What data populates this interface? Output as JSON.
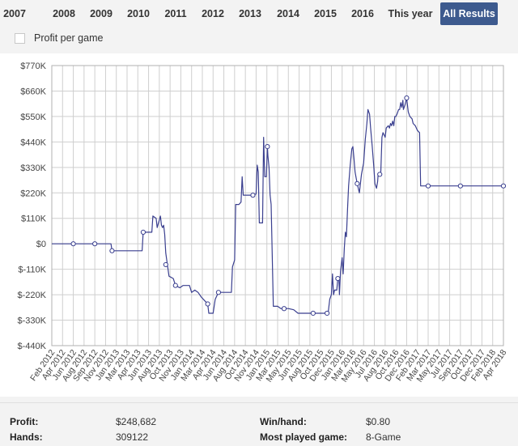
{
  "tabs": [
    {
      "label": "2007",
      "active": false
    },
    {
      "label": "2008",
      "active": false
    },
    {
      "label": "2009",
      "active": false
    },
    {
      "label": "2010",
      "active": false
    },
    {
      "label": "2011",
      "active": false
    },
    {
      "label": "2012",
      "active": false
    },
    {
      "label": "2013",
      "active": false
    },
    {
      "label": "2014",
      "active": false
    },
    {
      "label": "2015",
      "active": false
    },
    {
      "label": "2016",
      "active": false
    },
    {
      "label": "This year",
      "active": false
    },
    {
      "label": "All Results",
      "active": true
    }
  ],
  "profit_per_game": {
    "label": "Profit per game",
    "checked": false
  },
  "colors": {
    "accent": "#3d5a8e",
    "line": "#3a3f8f"
  },
  "chart_data": {
    "type": "line",
    "ylim": [
      -440,
      770
    ],
    "y_ticks": [
      {
        "value": 770,
        "label": "$770K"
      },
      {
        "value": 660,
        "label": "$660K"
      },
      {
        "value": 550,
        "label": "$550K"
      },
      {
        "value": 440,
        "label": "$440K"
      },
      {
        "value": 330,
        "label": "$330K"
      },
      {
        "value": 220,
        "label": "$220K"
      },
      {
        "value": 110,
        "label": "$110K"
      },
      {
        "value": 0,
        "label": "$0"
      },
      {
        "value": -110,
        "label": "$-110K"
      },
      {
        "value": -220,
        "label": "$-220K"
      },
      {
        "value": -330,
        "label": "$-330K"
      },
      {
        "value": -440,
        "label": "$-440K"
      }
    ],
    "x_ticks": [
      "Feb 2012",
      "Apr 2012",
      "Jun 2012",
      "Aug 2012",
      "Sep 2012",
      "Nov 2012",
      "Jan 2013",
      "Mar 2013",
      "Apr 2013",
      "Jun 2013",
      "Aug 2013",
      "Oct 2013",
      "Nov 2013",
      "Jan 2014",
      "Mar 2014",
      "Apr 2014",
      "Jun 2014",
      "Aug 2014",
      "Oct 2014",
      "Nov 2014",
      "Jan 2015",
      "Mar 2015",
      "May 2015",
      "Jun 2015",
      "Aug 2015",
      "Oct 2015",
      "Dec 2015",
      "Jan 2016",
      "Mar 2016",
      "May 2016",
      "Jul 2016",
      "Aug 2016",
      "Oct 2016",
      "Dec 2016",
      "Feb 2017",
      "Mar 2017",
      "May 2017",
      "Jul 2017",
      "Sep 2017",
      "Oct 2017",
      "Dec 2017",
      "Feb 2018",
      "Apr 2018"
    ],
    "series": [
      {
        "points": [
          [
            0,
            0
          ],
          [
            2,
            0
          ],
          [
            4,
            0
          ],
          [
            5.5,
            0
          ],
          [
            5.6,
            -30
          ],
          [
            7,
            -30
          ],
          [
            8.4,
            -30
          ],
          [
            8.5,
            50
          ],
          [
            9,
            50
          ],
          [
            9.3,
            50
          ],
          [
            9.4,
            120
          ],
          [
            9.7,
            110
          ],
          [
            9.8,
            70
          ],
          [
            10.1,
            120
          ],
          [
            10.2,
            80
          ],
          [
            10.3,
            70
          ],
          [
            10.4,
            80
          ],
          [
            10.5,
            40
          ],
          [
            10.6,
            -40
          ],
          [
            10.75,
            -90
          ],
          [
            10.9,
            -140
          ],
          [
            11.3,
            -150
          ],
          [
            11.5,
            -180
          ],
          [
            11.9,
            -190
          ],
          [
            12.2,
            -180
          ],
          [
            12.5,
            -180
          ],
          [
            12.8,
            -180
          ],
          [
            13,
            -210
          ],
          [
            13.3,
            -200
          ],
          [
            13.6,
            -210
          ],
          [
            13.9,
            -230
          ],
          [
            14.3,
            -250
          ],
          [
            14.5,
            -260
          ],
          [
            14.6,
            -300
          ],
          [
            15,
            -300
          ],
          [
            15.2,
            -240
          ],
          [
            15.5,
            -210
          ],
          [
            16,
            -210
          ],
          [
            16.7,
            -210
          ],
          [
            16.8,
            -100
          ],
          [
            17,
            -70
          ],
          [
            17.1,
            170
          ],
          [
            17.4,
            170
          ],
          [
            17.6,
            180
          ],
          [
            17.7,
            290
          ],
          [
            17.8,
            210
          ],
          [
            18.3,
            210
          ],
          [
            18.7,
            210
          ],
          [
            19,
            215
          ],
          [
            19.1,
            340
          ],
          [
            19.2,
            310
          ],
          [
            19.3,
            90
          ],
          [
            19.6,
            90
          ],
          [
            19.7,
            460
          ],
          [
            19.8,
            290
          ],
          [
            19.95,
            290
          ],
          [
            20.05,
            420
          ],
          [
            20.1,
            380
          ],
          [
            20.2,
            330
          ],
          [
            20.3,
            210
          ],
          [
            20.4,
            170
          ],
          [
            20.6,
            -270
          ],
          [
            21,
            -270
          ],
          [
            21.3,
            -280
          ],
          [
            21.6,
            -280
          ],
          [
            22,
            -280
          ],
          [
            22.5,
            -285
          ],
          [
            22.9,
            -300
          ],
          [
            23.3,
            -300
          ],
          [
            23.7,
            -300
          ],
          [
            24.3,
            -300
          ],
          [
            24.8,
            -300
          ],
          [
            25.4,
            -300
          ],
          [
            25.7,
            -300
          ],
          [
            25.85,
            -240
          ],
          [
            26,
            -220
          ],
          [
            26.1,
            -130
          ],
          [
            26.2,
            -220
          ],
          [
            26.3,
            -200
          ],
          [
            26.5,
            -200
          ],
          [
            26.6,
            -150
          ],
          [
            26.7,
            -150
          ],
          [
            26.75,
            -220
          ],
          [
            26.85,
            -120
          ],
          [
            27,
            -60
          ],
          [
            27.1,
            -130
          ],
          [
            27.2,
            -20
          ],
          [
            27.3,
            50
          ],
          [
            27.4,
            30
          ],
          [
            27.5,
            150
          ],
          [
            27.6,
            250
          ],
          [
            27.75,
            340
          ],
          [
            27.9,
            410
          ],
          [
            28,
            420
          ],
          [
            28.1,
            370
          ],
          [
            28.2,
            310
          ],
          [
            28.4,
            260
          ],
          [
            28.6,
            220
          ],
          [
            28.8,
            300
          ],
          [
            29,
            350
          ],
          [
            29.15,
            450
          ],
          [
            29.3,
            520
          ],
          [
            29.4,
            580
          ],
          [
            29.55,
            560
          ],
          [
            29.65,
            500
          ],
          [
            29.8,
            420
          ],
          [
            29.95,
            330
          ],
          [
            30.05,
            260
          ],
          [
            30.2,
            240
          ],
          [
            30.3,
            270
          ],
          [
            30.35,
            300
          ],
          [
            30.5,
            300
          ],
          [
            30.6,
            310
          ],
          [
            30.7,
            460
          ],
          [
            30.8,
            480
          ],
          [
            31,
            460
          ],
          [
            31.1,
            500
          ],
          [
            31.3,
            510
          ],
          [
            31.4,
            500
          ],
          [
            31.5,
            520
          ],
          [
            31.6,
            510
          ],
          [
            31.7,
            530
          ],
          [
            31.8,
            510
          ],
          [
            31.9,
            550
          ],
          [
            32,
            550
          ],
          [
            32.1,
            560
          ],
          [
            32.25,
            580
          ],
          [
            32.35,
            580
          ],
          [
            32.45,
            610
          ],
          [
            32.55,
            590
          ],
          [
            32.65,
            620
          ],
          [
            32.7,
            580
          ],
          [
            32.85,
            600
          ],
          [
            33,
            630
          ],
          [
            33.15,
            570
          ],
          [
            33.3,
            550
          ],
          [
            33.5,
            540
          ],
          [
            33.6,
            520
          ],
          [
            33.8,
            510
          ],
          [
            34,
            490
          ],
          [
            34.2,
            480
          ],
          [
            34.3,
            250
          ],
          [
            35,
            250
          ],
          [
            36,
            250
          ],
          [
            37,
            250
          ],
          [
            38,
            250
          ],
          [
            39,
            250
          ],
          [
            40,
            250
          ],
          [
            41,
            250
          ],
          [
            42,
            250
          ]
        ]
      }
    ],
    "markers": [
      [
        2,
        0
      ],
      [
        4,
        0
      ],
      [
        5.6,
        -30
      ],
      [
        8.5,
        50
      ],
      [
        10.6,
        -90
      ],
      [
        11.5,
        -180
      ],
      [
        14.5,
        -260
      ],
      [
        15.5,
        -210
      ],
      [
        18.7,
        210
      ],
      [
        20.05,
        420
      ],
      [
        21.6,
        -280
      ],
      [
        24.3,
        -300
      ],
      [
        25.6,
        -300
      ],
      [
        26.6,
        -150
      ],
      [
        28.4,
        260
      ],
      [
        30.5,
        300
      ],
      [
        33,
        630
      ],
      [
        35,
        250
      ],
      [
        38,
        250
      ],
      [
        42,
        250
      ]
    ]
  },
  "stats": {
    "profit_label": "Profit:",
    "profit_value": "$248,682",
    "hands_label": "Hands:",
    "hands_value": "309122",
    "winhand_label": "Win/hand:",
    "winhand_value": "$0.80",
    "most_label": "Most played game:",
    "most_value": "8-Game"
  }
}
